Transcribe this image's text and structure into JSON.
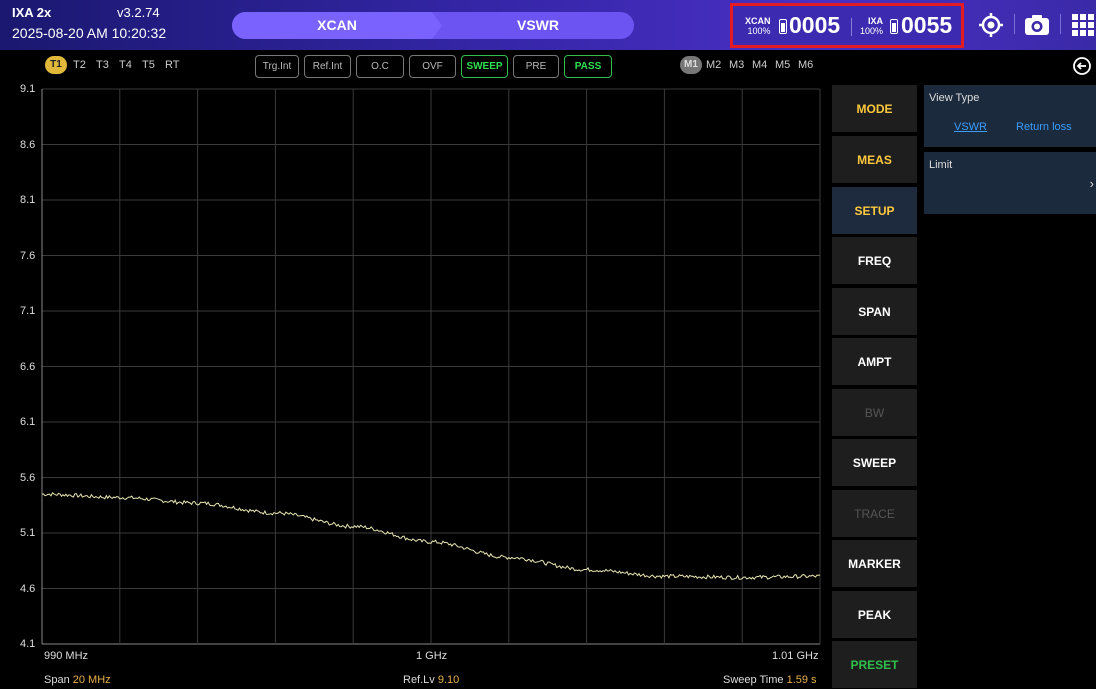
{
  "header": {
    "app_name": "IXA 2x",
    "version": "v3.2.74",
    "datetime": "2025-08-20 AM 10:20:32",
    "mode_steps": [
      "XCAN",
      "VSWR"
    ],
    "devices": [
      {
        "name": "XCAN",
        "battery": "100%",
        "count": "0005"
      },
      {
        "name": "IXA",
        "battery": "100%",
        "count": "0055"
      }
    ],
    "icons": [
      "locate-icon",
      "camera-icon",
      "grid-menu-icon"
    ]
  },
  "toolbar": {
    "traces": [
      "T1",
      "T2",
      "T3",
      "T4",
      "T5",
      "RT"
    ],
    "active_trace": "T1",
    "status": [
      "Trg.Int",
      "Ref.Int",
      "O.C",
      "OVF",
      "SWEEP",
      "PRE",
      "PASS"
    ],
    "status_active": [
      "SWEEP",
      "PASS"
    ],
    "markers": [
      "M1",
      "M2",
      "M3",
      "M4",
      "M5",
      "M6"
    ]
  },
  "plot": {
    "y_ticks": [
      "9.1",
      "8.6",
      "8.1",
      "7.6",
      "7.1",
      "6.6",
      "6.1",
      "5.6",
      "5.1",
      "4.6",
      "4.1"
    ],
    "x_ticks": [
      "990 MHz",
      "1 GHz",
      "1.01 GHz"
    ],
    "span_label": "Span",
    "span_value": "20 MHz",
    "reflv_label": "Ref.Lv",
    "reflv_value": "9.10",
    "sweep_label": "Sweep Time",
    "sweep_value": "1.59 s"
  },
  "chart_data": {
    "type": "line",
    "xlabel": "",
    "ylabel": "",
    "xlim": [
      990,
      1010
    ],
    "ylim": [
      4.1,
      9.1
    ],
    "grid": true,
    "x_unit": "MHz",
    "series": [
      {
        "x": [
          990,
          992,
          994,
          996,
          998,
          1000,
          1002,
          1004,
          1006,
          1008,
          1010
        ],
        "values": [
          5.45,
          5.42,
          5.37,
          5.28,
          5.16,
          5.02,
          4.88,
          4.77,
          4.71,
          4.7,
          4.71
        ],
        "color": "#e8e6b0"
      }
    ]
  },
  "menu": {
    "items": [
      "MODE",
      "MEAS",
      "SETUP",
      "FREQ",
      "SPAN",
      "AMPT",
      "BW",
      "SWEEP",
      "TRACE",
      "MARKER",
      "PEAK",
      "PRESET"
    ],
    "active": "SETUP",
    "disabled": [
      "BW",
      "TRACE"
    ]
  },
  "panel": {
    "view_type_label": "View Type",
    "view_options": [
      "VSWR",
      "Return loss"
    ],
    "selected_view": "VSWR",
    "limit_label": "Limit"
  },
  "colors": {
    "accent": "#ffc93c",
    "pass": "#2fbf4a",
    "highlight": "#e41b23",
    "link": "#3b9dff"
  }
}
